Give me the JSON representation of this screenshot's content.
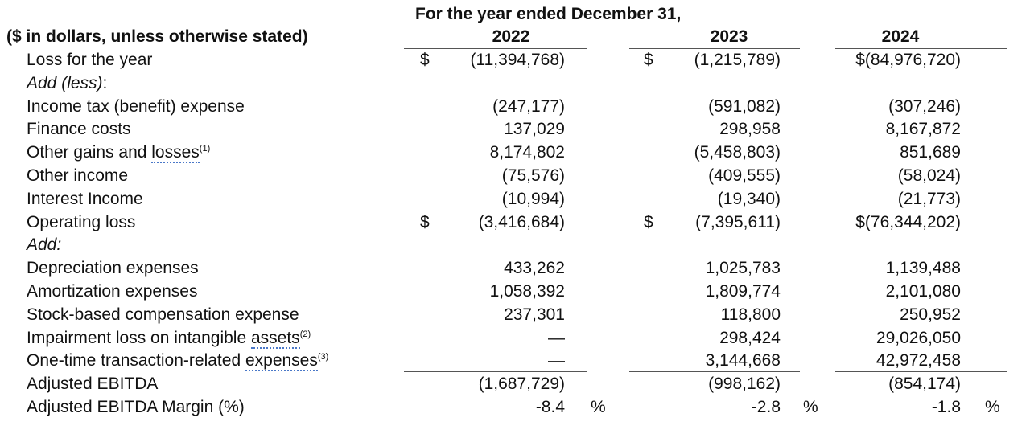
{
  "header": {
    "period_title": "For the year ended December 31,",
    "units_label": "($ in dollars, unless otherwise stated)",
    "years": [
      "2022",
      "2023",
      "2024"
    ]
  },
  "rows": [
    {
      "label": "Loss for the year",
      "cur": [
        "$",
        "$",
        ""
      ],
      "v": [
        "(11,394,768)",
        "(1,215,789)",
        "$(84,976,720)"
      ]
    },
    {
      "label": "Add (less)",
      "suffix": ":"
    },
    {
      "label": "Income tax (benefit) expense",
      "v": [
        "(247,177)",
        "(591,082)",
        "(307,246)"
      ]
    },
    {
      "label": "Finance costs",
      "v": [
        "137,029",
        "298,958",
        "8,167,872"
      ]
    },
    {
      "label": "Other gains and ",
      "underlined": "losses",
      "sup": "(1)",
      "v": [
        "8,174,802",
        "(5,458,803)",
        "851,689"
      ]
    },
    {
      "label": "Other income",
      "v": [
        "(75,576)",
        "(409,555)",
        "(58,024)"
      ]
    },
    {
      "label": "Interest Income",
      "v": [
        "(10,994)",
        "(19,340)",
        "(21,773)"
      ]
    },
    {
      "label": "Operating loss",
      "cur": [
        "$",
        "$",
        ""
      ],
      "v": [
        "(3,416,684)",
        "(7,395,611)",
        "$(76,344,202)"
      ]
    },
    {
      "label": "Add:"
    },
    {
      "label": "Depreciation expenses",
      "v": [
        "433,262",
        "1,025,783",
        "1,139,488"
      ]
    },
    {
      "label": "Amortization expenses",
      "v": [
        "1,058,392",
        "1,809,774",
        "2,101,080"
      ]
    },
    {
      "label": "Stock-based compensation expense",
      "v": [
        "237,301",
        "118,800",
        "250,952"
      ]
    },
    {
      "label": "Impairment loss on intangible ",
      "underlined": "assets",
      "sup": "(2)",
      "v": [
        "—",
        "298,424",
        "29,026,050"
      ]
    },
    {
      "label": "One-time transaction-related ",
      "underlined": "expenses",
      "sup": "(3)",
      "v": [
        "—",
        "3,144,668",
        "42,972,458"
      ]
    },
    {
      "label": "Adjusted EBITDA",
      "v": [
        "(1,687,729)",
        "(998,162)",
        "(854,174)"
      ]
    },
    {
      "label": "Adjusted EBITDA Margin (%)",
      "v": [
        "-8.4",
        "-2.8",
        "-1.8"
      ],
      "pct": "%"
    }
  ]
}
